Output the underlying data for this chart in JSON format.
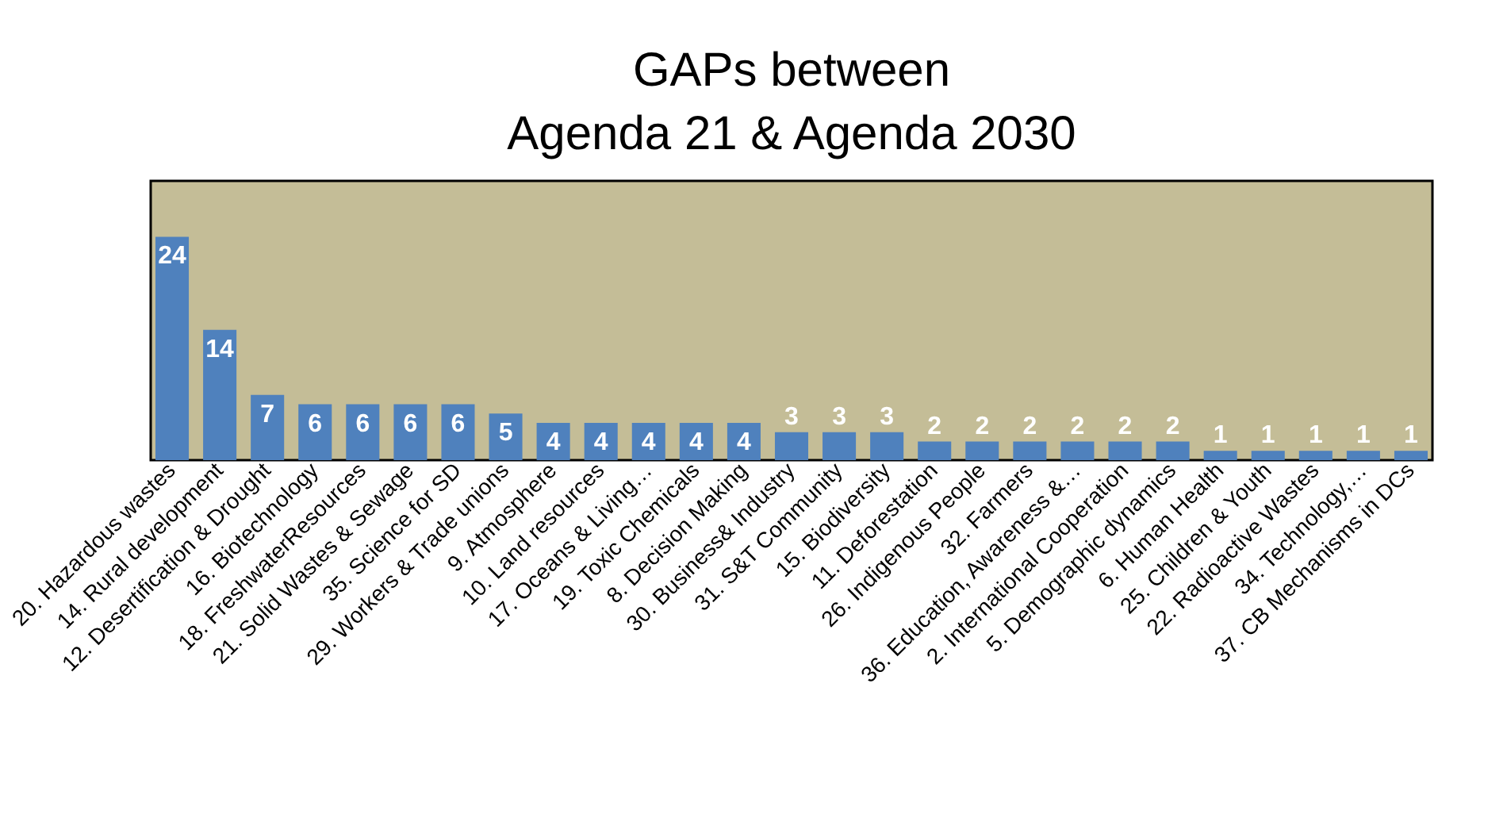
{
  "chart_data": {
    "type": "bar",
    "title": "GAPs between\nAgenda 21 & Agenda 2030",
    "categories": [
      "20. Hazardous wastes",
      "14. Rural development",
      "12. Desertification & Drought",
      "16. Biotechnology",
      "18. FreshwaterResources",
      "21. Solid Wastes & Sewage",
      "35. Science for SD",
      "29. Workers & Trade unions",
      "9. Atmosphere",
      "10. Land resources",
      "17. Oceans & Living…",
      "19. Toxic Chemicals",
      "8. Decision Making",
      "30. Business& Industry",
      "31.  S&T Community",
      "15. Biodiversity",
      "11. Deforestation",
      "26. Indigenous People",
      "32. Farmers",
      "36. Education, Awareness &…",
      "2. International Cooperation",
      "5. Demographic dynamics",
      "6. Human Health",
      "25. Children & Youth",
      "22. Radioactive Wastes",
      "34. Technology,…",
      "37. CB Mechanisms in DCs"
    ],
    "values": [
      24,
      14,
      7,
      6,
      6,
      6,
      6,
      5,
      4,
      4,
      4,
      4,
      4,
      3,
      3,
      3,
      2,
      2,
      2,
      2,
      2,
      2,
      1,
      1,
      1,
      1,
      1
    ],
    "color": "#4f81bd",
    "ylim": [
      0,
      30
    ],
    "data_labels": true,
    "tick_labels": "x",
    "grid": false
  }
}
